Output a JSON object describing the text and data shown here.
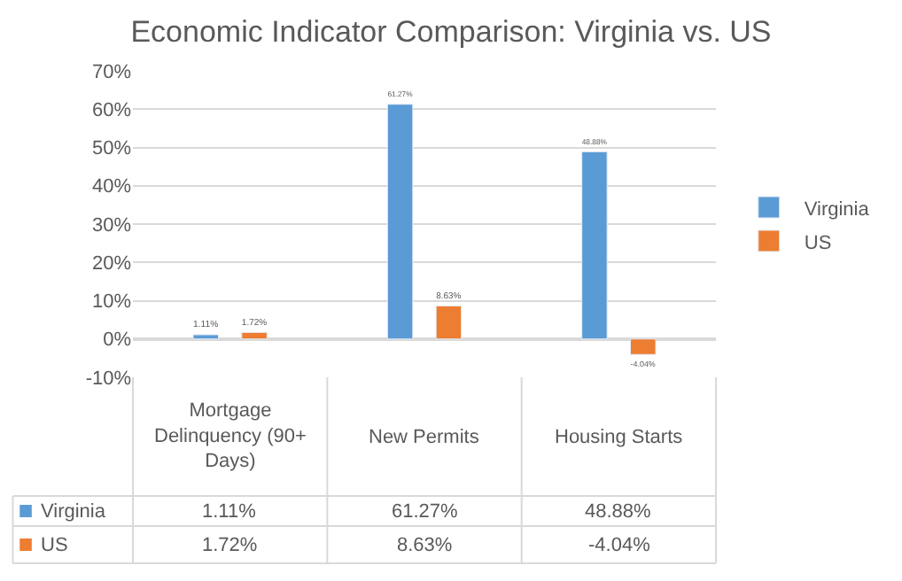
{
  "chart_data": {
    "type": "bar",
    "title": "Economic Indicator Comparison: Virginia vs. US",
    "categories": [
      "Mortgage Delinquency (90+ Days)",
      "New Permits",
      "Housing Starts"
    ],
    "series": [
      {
        "name": "Virginia",
        "color": "#5b9bd5",
        "values": [
          1.11,
          61.27,
          48.88
        ]
      },
      {
        "name": "US",
        "color": "#ed7d31",
        "values": [
          1.72,
          8.63,
          -4.04
        ]
      }
    ],
    "value_labels": [
      [
        "1.11%",
        "61.27%",
        "48.88%"
      ],
      [
        "1.72%",
        "8.63%",
        "-4.04%"
      ]
    ],
    "ylim": [
      -10,
      70
    ],
    "yticks": [
      {
        "value": -10,
        "label": "-10%"
      },
      {
        "value": 0,
        "label": "0%"
      },
      {
        "value": 10,
        "label": "10%"
      },
      {
        "value": 20,
        "label": "20%"
      },
      {
        "value": 30,
        "label": "30%"
      },
      {
        "value": 40,
        "label": "40%"
      },
      {
        "value": 50,
        "label": "50%"
      },
      {
        "value": 60,
        "label": "60%"
      },
      {
        "value": 70,
        "label": "70%"
      }
    ],
    "grid": "y",
    "legend": "right"
  }
}
